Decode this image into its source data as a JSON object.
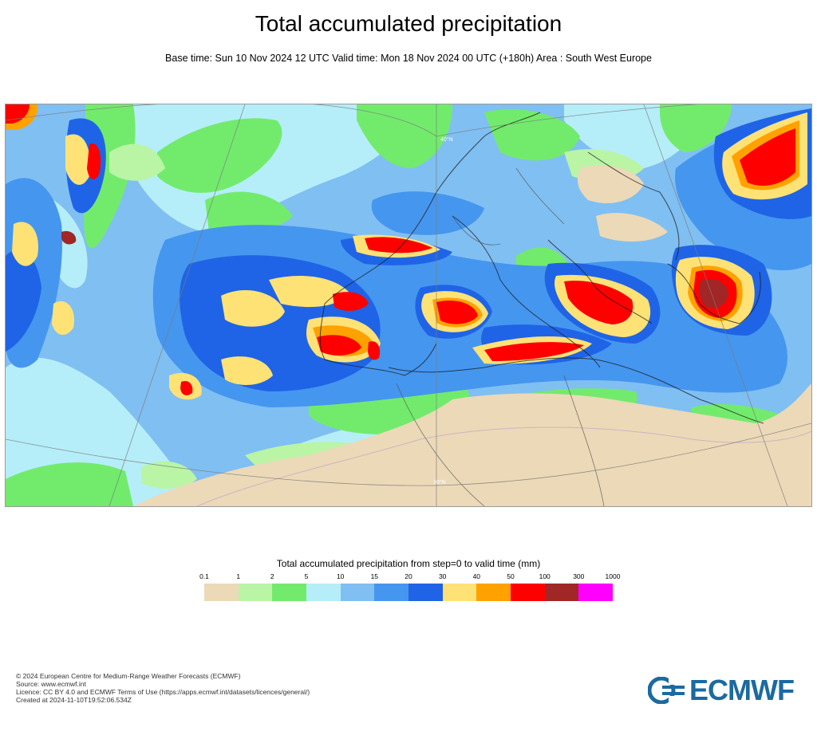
{
  "header": {
    "title": "Total accumulated precipitation",
    "subtitle": "Base time: Sun 10 Nov 2024 12 UTC Valid time: Mon 18 Nov 2024 00 UTC (+180h) Area : South West Europe"
  },
  "map": {
    "gridline_labels": [
      "40°N",
      "30°N"
    ]
  },
  "legend": {
    "title": "Total accumulated precipitation from step=0 to valid time (mm)",
    "ticks": [
      "0.1",
      "1",
      "2",
      "5",
      "10",
      "15",
      "20",
      "30",
      "40",
      "50",
      "100",
      "300",
      "1000"
    ],
    "colors": [
      "#ecd9b8",
      "#b9f5a5",
      "#72eb6c",
      "#b5eef8",
      "#80bff2",
      "#4596ef",
      "#1f64e6",
      "#ffe276",
      "#ffa200",
      "#ff0000",
      "#a12626",
      "#ff00ff"
    ]
  },
  "footer": {
    "line1": "© 2024 European Centre for Medium-Range Weather Forecasts (ECMWF)",
    "line2": "Source: www.ecmwf.int",
    "line3": "Licence: CC BY 4.0 and ECMWF Terms of Use (https://apps.ecmwf.int/datasets/licences/general/)",
    "line4": "Created at 2024-11-10T19:52:06.534Z"
  },
  "logo": {
    "text": "ECMWF"
  }
}
